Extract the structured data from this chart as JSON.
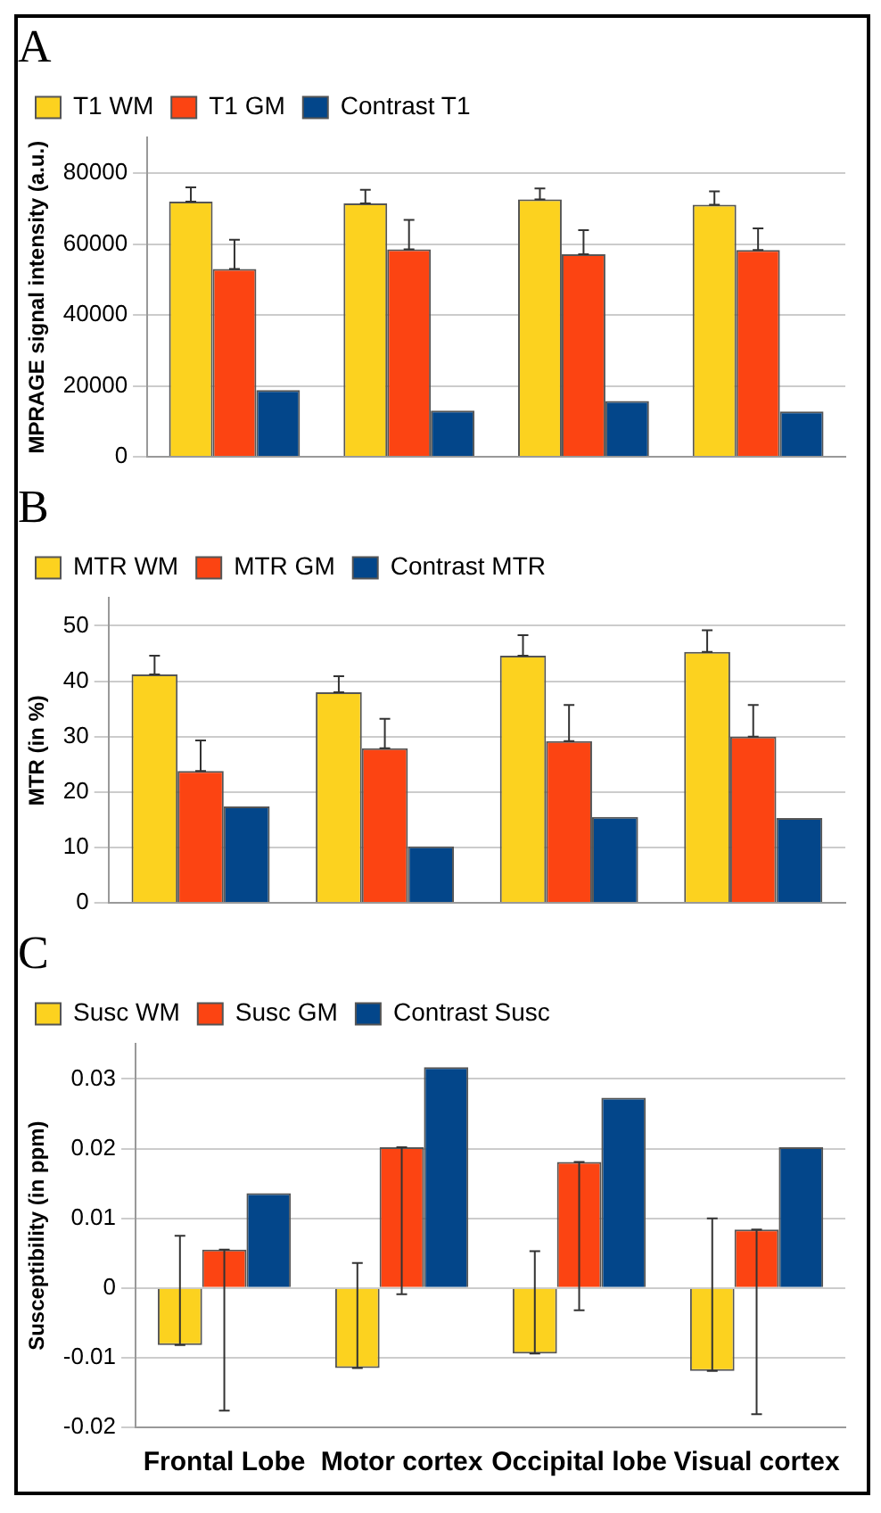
{
  "chart_data": [
    {
      "type": "bar",
      "title": "A",
      "ylabel": "MPRAGE signal intensity (a.u.)",
      "categories": [
        null,
        null,
        null,
        null
      ],
      "ylim": [
        0,
        90000
      ],
      "yticks": [
        0,
        20000,
        40000,
        60000,
        80000
      ],
      "grid": "y",
      "legend": "top left",
      "tick_labels": "y",
      "series": [
        {
          "name": "T1 WM",
          "color": "#fcd21f",
          "values": [
            72000,
            71500,
            72600,
            71100
          ],
          "errors": [
            [
              72000,
              76000
            ],
            [
              71500,
              75300
            ],
            [
              72600,
              75700
            ],
            [
              71100,
              74900
            ]
          ]
        },
        {
          "name": "T1 GM",
          "color": "#fc4412",
          "values": [
            53000,
            58500,
            57100,
            58300
          ],
          "errors": [
            [
              53000,
              61200
            ],
            [
              58500,
              66800
            ],
            [
              57100,
              63900
            ],
            [
              58300,
              64400
            ]
          ]
        },
        {
          "name": "Contrast T1",
          "color": "#03468a",
          "values": [
            18800,
            13000,
            15700,
            12800
          ]
        }
      ]
    },
    {
      "type": "bar",
      "title": "B",
      "ylabel": "MTR (in %)",
      "categories": [
        null,
        null,
        null,
        null
      ],
      "ylim": [
        0,
        55
      ],
      "yticks": [
        0,
        10,
        20,
        30,
        40,
        50
      ],
      "grid": "y",
      "legend": "top left",
      "tick_labels": "y",
      "series": [
        {
          "name": "MTR WM",
          "color": "#fcd21f",
          "values": [
            41.2,
            38.0,
            44.6,
            45.3
          ],
          "errors": [
            [
              41.2,
              44.6
            ],
            [
              38.0,
              40.9
            ],
            [
              44.6,
              48.3
            ],
            [
              45.3,
              49.2
            ]
          ]
        },
        {
          "name": "MTR GM",
          "color": "#fc4412",
          "values": [
            23.8,
            27.9,
            29.2,
            30.0
          ],
          "errors": [
            [
              23.8,
              29.3
            ],
            [
              27.9,
              33.2
            ],
            [
              29.2,
              35.7
            ],
            [
              30.0,
              35.7
            ]
          ]
        },
        {
          "name": "Contrast MTR",
          "color": "#03468a",
          "values": [
            17.4,
            10.2,
            15.5,
            15.3
          ]
        }
      ]
    },
    {
      "type": "bar",
      "title": "C",
      "ylabel": "Susceptibility (in ppm)",
      "categories": [
        "Frontal Lobe",
        "Motor cortex",
        "Occipital lobe",
        "Visual cortex"
      ],
      "ylim": [
        -0.02,
        0.035
      ],
      "yticks": [
        -0.02,
        -0.01,
        0,
        0.01,
        0.02,
        0.03
      ],
      "grid": "y",
      "legend": "top left",
      "series": [
        {
          "name": "Susc WM",
          "color": "#fcd21f",
          "values": [
            -0.0082,
            -0.0115,
            -0.0094,
            -0.0119
          ],
          "errors": [
            [
              -0.0082,
              0.0075
            ],
            [
              -0.0115,
              0.0036
            ],
            [
              -0.0094,
              0.0053
            ],
            [
              -0.0119,
              0.01
            ]
          ]
        },
        {
          "name": "Susc GM",
          "color": "#fc4412",
          "values": [
            0.0055,
            0.0202,
            0.0181,
            0.0084
          ],
          "errors": [
            [
              -0.0176,
              0.0055
            ],
            [
              -0.0009,
              0.0202
            ],
            [
              -0.0032,
              0.0181
            ],
            [
              -0.0181,
              0.0084
            ]
          ]
        },
        {
          "name": "Contrast Susc",
          "color": "#03468a",
          "values": [
            0.0136,
            0.0317,
            0.0273,
            0.0202
          ]
        }
      ]
    }
  ]
}
